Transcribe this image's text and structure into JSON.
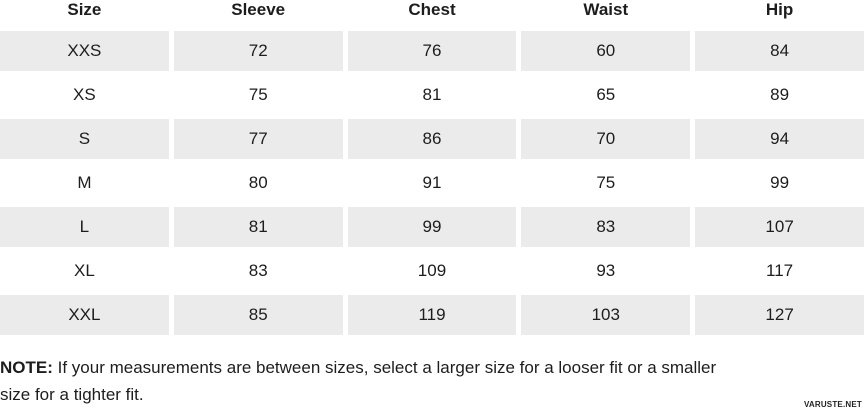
{
  "colors": {
    "row_shade": "#ebebeb",
    "text": "#1d1d1d"
  },
  "table": {
    "columns": [
      "Size",
      "Sleeve",
      "Chest",
      "Waist",
      "Hip"
    ],
    "rows": [
      {
        "cells": [
          "XXS",
          "72",
          "76",
          "60",
          "84"
        ],
        "shaded": true
      },
      {
        "cells": [
          "XS",
          "75",
          "81",
          "65",
          "89"
        ],
        "shaded": false
      },
      {
        "cells": [
          "S",
          "77",
          "86",
          "70",
          "94"
        ],
        "shaded": true
      },
      {
        "cells": [
          "M",
          "80",
          "91",
          "75",
          "99"
        ],
        "shaded": false
      },
      {
        "cells": [
          "L",
          "81",
          "99",
          "83",
          "107"
        ],
        "shaded": true
      },
      {
        "cells": [
          "XL",
          "83",
          "109",
          "93",
          "117"
        ],
        "shaded": false
      },
      {
        "cells": [
          "XXL",
          "85",
          "119",
          "103",
          "127"
        ],
        "shaded": true
      }
    ]
  },
  "note": {
    "label": "NOTE:",
    "line1": " If your measurements are between sizes, select a larger size for a looser fit or a smaller",
    "line2": "size for a tighter fit."
  },
  "watermark": "VARUSTE.NET"
}
